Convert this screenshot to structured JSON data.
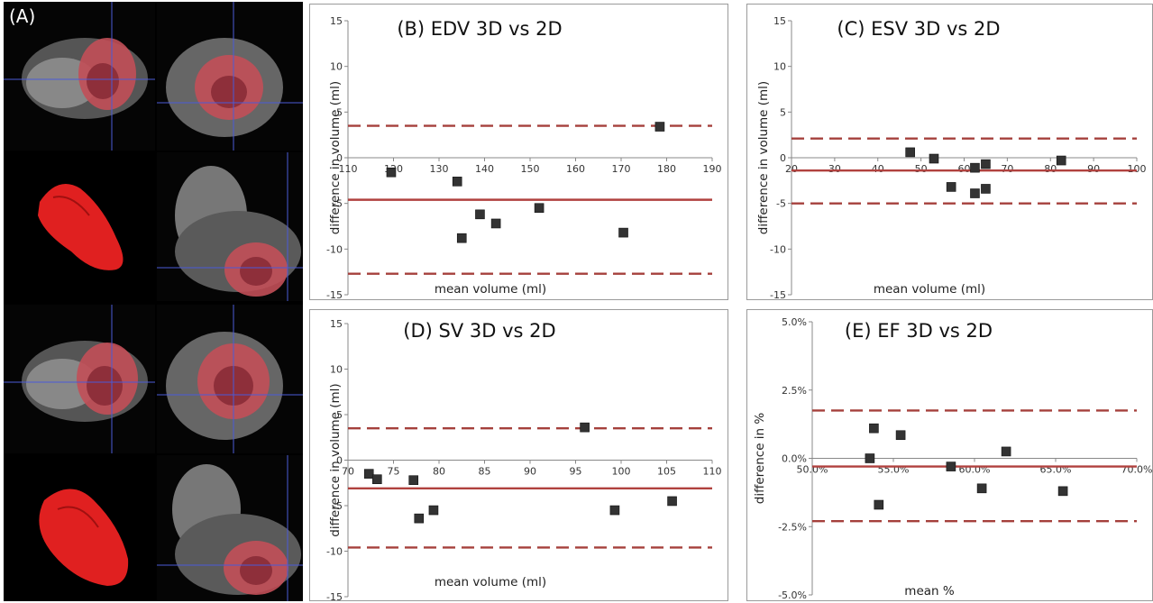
{
  "panel_a": {
    "label": "(A)"
  },
  "colors": {
    "mean_line": "#b0413e",
    "limit_line": "#a5403c",
    "marker": "#333333",
    "frame": "#9a9a9a",
    "heart": "#e02020"
  },
  "chart_data": [
    {
      "type": "scatter",
      "title": "(B) EDV 3D vs 2D",
      "xlabel": "mean volume (ml)",
      "ylabel": "difference in volume (ml)",
      "xlim": [
        110,
        190
      ],
      "ylim": [
        -15,
        15
      ],
      "x_ticks": [
        "110",
        "120",
        "130",
        "140",
        "150",
        "160",
        "170",
        "180",
        "190"
      ],
      "y_ticks": [
        "15",
        "10",
        "5",
        "0",
        "-5",
        "-10",
        "-15"
      ],
      "points": [
        [
          119.5,
          -1.6
        ],
        [
          134,
          -2.6
        ],
        [
          135,
          -8.8
        ],
        [
          139,
          -6.2
        ],
        [
          142.5,
          -7.2
        ],
        [
          152,
          -5.5
        ],
        [
          170.5,
          -8.2
        ],
        [
          178.5,
          3.4
        ]
      ],
      "mean": -4.6,
      "limits": [
        3.5,
        -12.7
      ],
      "grid": false,
      "axis_crossing": 0
    },
    {
      "type": "scatter",
      "title": "(C) ESV 3D vs 2D",
      "xlabel": "mean volume (ml)",
      "ylabel": "difference in volume (ml)",
      "xlim": [
        20,
        100
      ],
      "ylim": [
        -15,
        15
      ],
      "x_ticks": [
        "20",
        "30",
        "40",
        "50",
        "60",
        "70",
        "80",
        "90",
        "100"
      ],
      "y_ticks": [
        "15",
        "10",
        "5",
        "0",
        "-5",
        "-10",
        "-15"
      ],
      "points": [
        [
          47.5,
          0.6
        ],
        [
          53,
          -0.1
        ],
        [
          57,
          -3.2
        ],
        [
          62.5,
          -1.1
        ],
        [
          62.5,
          -3.9
        ],
        [
          65,
          -0.7
        ],
        [
          65,
          -3.4
        ],
        [
          82.5,
          -0.3
        ]
      ],
      "mean": -1.4,
      "limits": [
        2.1,
        -5.0
      ],
      "grid": false,
      "axis_crossing": 0
    },
    {
      "type": "scatter",
      "title": "(D) SV 3D vs 2D",
      "xlabel": "mean volume (ml)",
      "ylabel": "difference in volume (ml)",
      "xlim": [
        70,
        110
      ],
      "ylim": [
        -15,
        15
      ],
      "x_ticks": [
        "70",
        "75",
        "80",
        "85",
        "90",
        "95",
        "100",
        "105",
        "110"
      ],
      "y_ticks": [
        "15",
        "10",
        "5",
        "0",
        "-5",
        "-10",
        "-15"
      ],
      "points": [
        [
          72.3,
          -1.5
        ],
        [
          73.2,
          -2.1
        ],
        [
          77.2,
          -2.2
        ],
        [
          77.8,
          -6.4
        ],
        [
          79.4,
          -5.5
        ],
        [
          96,
          3.6
        ],
        [
          99.3,
          -5.5
        ],
        [
          105.6,
          -4.5
        ]
      ],
      "mean": -3.1,
      "limits": [
        3.5,
        -9.6
      ],
      "grid": false,
      "axis_crossing": 0
    },
    {
      "type": "scatter",
      "title": "(E) EF 3D vs 2D",
      "xlabel": "mean %",
      "ylabel": "difference in %",
      "xlim": [
        0.5,
        0.7
      ],
      "ylim": [
        -0.05,
        0.05
      ],
      "x_ticks": [
        "50.0%",
        "55.0%",
        "60.0%",
        "65.0%",
        "70.0%"
      ],
      "y_ticks": [
        "5.0%",
        "2.5%",
        "0.0%",
        "-2.5%",
        "-5.0%"
      ],
      "points": [
        [
          0.5355,
          0.0
        ],
        [
          0.538,
          0.011
        ],
        [
          0.541,
          -0.017
        ],
        [
          0.5545,
          0.0085
        ],
        [
          0.5855,
          -0.003
        ],
        [
          0.6045,
          -0.011
        ],
        [
          0.6195,
          0.0025
        ],
        [
          0.6545,
          -0.012
        ]
      ],
      "mean": -0.003,
      "limits": [
        0.0175,
        -0.023
      ],
      "grid": false,
      "axis_crossing": 0
    }
  ]
}
